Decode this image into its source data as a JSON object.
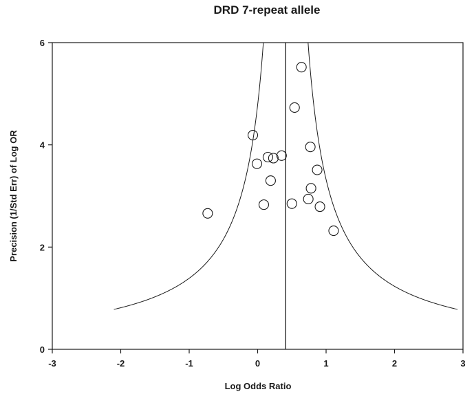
{
  "chart_data": {
    "type": "scatter",
    "title": "DRD 7-repeat allele",
    "xlabel": "Log Odds Ratio",
    "ylabel": "Precision (1/Std Err) of Log OR",
    "xlim": [
      -3,
      3
    ],
    "ylim": [
      0,
      6
    ],
    "x_ticks": [
      "-3",
      "-2",
      "-1",
      "0",
      "1",
      "2",
      "3"
    ],
    "y_ticks": [
      "0",
      "2",
      "4",
      "6"
    ],
    "pooled_estimate": 0.41,
    "funnel_x_range": [
      -2.1,
      2.92
    ],
    "grid": false,
    "legend": "none",
    "points": [
      {
        "x": -0.73,
        "y": 2.66
      },
      {
        "x": -0.07,
        "y": 4.19
      },
      {
        "x": -0.01,
        "y": 3.63
      },
      {
        "x": 0.09,
        "y": 2.83
      },
      {
        "x": 0.15,
        "y": 3.76
      },
      {
        "x": 0.19,
        "y": 3.3
      },
      {
        "x": 0.23,
        "y": 3.74
      },
      {
        "x": 0.35,
        "y": 3.79
      },
      {
        "x": 0.5,
        "y": 2.85
      },
      {
        "x": 0.54,
        "y": 4.73
      },
      {
        "x": 0.64,
        "y": 5.52
      },
      {
        "x": 0.74,
        "y": 2.94
      },
      {
        "x": 0.77,
        "y": 3.96
      },
      {
        "x": 0.78,
        "y": 3.15
      },
      {
        "x": 0.87,
        "y": 3.51
      },
      {
        "x": 0.91,
        "y": 2.79
      },
      {
        "x": 1.11,
        "y": 2.32
      }
    ]
  }
}
